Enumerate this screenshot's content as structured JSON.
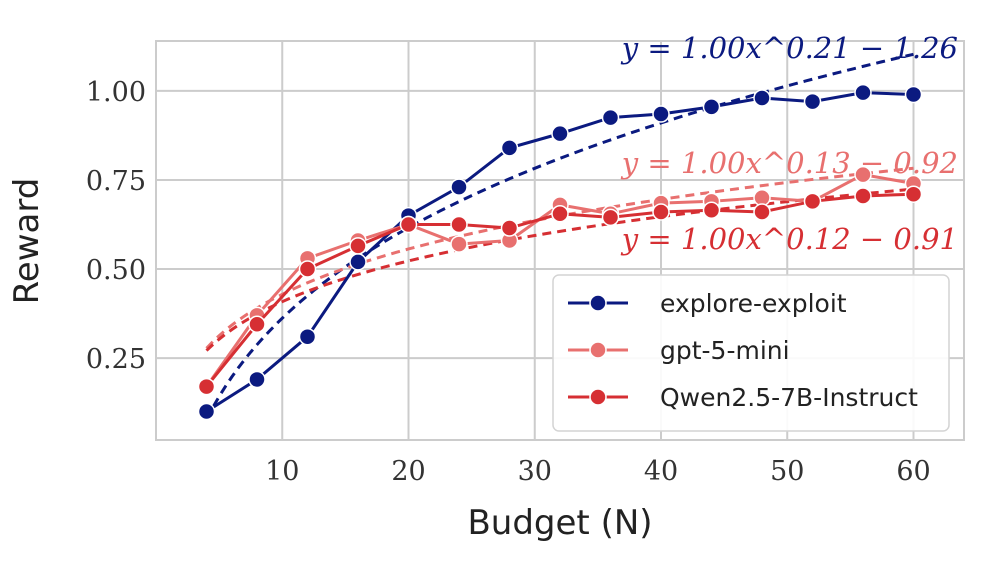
{
  "chart_data": {
    "type": "line",
    "xlabel": "Budget (N)",
    "ylabel": "Reward",
    "xlim": [
      0,
      64
    ],
    "ylim": [
      0.02,
      1.14
    ],
    "xticks": [
      "10",
      "20",
      "30",
      "40",
      "50",
      "60"
    ],
    "yticks": [
      "0.25",
      "0.50",
      "0.75",
      "1.00"
    ],
    "grid": true,
    "legend_position": "bottom-right",
    "series": [
      {
        "name": "explore-exploit",
        "color": "#0b1a80",
        "x": [
          4,
          8,
          12,
          16,
          20,
          24,
          28,
          32,
          36,
          40,
          44,
          48,
          52,
          56,
          60
        ],
        "values": [
          0.1,
          0.19,
          0.31,
          0.52,
          0.65,
          0.73,
          0.84,
          0.88,
          0.925,
          0.935,
          0.955,
          0.98,
          0.97,
          0.995,
          0.99
        ],
        "fit": {
          "a": 1.0,
          "b": 0.21,
          "c": -1.26,
          "label": "y = 1.00x^0.21 − 1.26"
        }
      },
      {
        "name": "gpt-5-mini",
        "color": "#e8706f",
        "x": [
          4,
          8,
          12,
          16,
          20,
          24,
          28,
          32,
          36,
          40,
          44,
          48,
          52,
          56,
          60
        ],
        "values": [
          0.17,
          0.37,
          0.53,
          0.58,
          0.625,
          0.57,
          0.58,
          0.68,
          0.655,
          0.685,
          0.69,
          0.7,
          0.69,
          0.765,
          0.74
        ],
        "fit": {
          "a": 1.0,
          "b": 0.13,
          "c": -0.92,
          "label": "y = 1.00x^0.13 − 0.92"
        }
      },
      {
        "name": "Qwen2.5-7B-Instruct",
        "color": "#d62f33",
        "x": [
          4,
          8,
          12,
          16,
          20,
          24,
          28,
          32,
          36,
          40,
          44,
          48,
          52,
          56,
          60
        ],
        "values": [
          0.17,
          0.345,
          0.5,
          0.565,
          0.625,
          0.625,
          0.615,
          0.655,
          0.645,
          0.66,
          0.665,
          0.66,
          0.69,
          0.705,
          0.71
        ],
        "fit": {
          "a": 1.0,
          "b": 0.12,
          "c": -0.91,
          "label": "y = 1.00x^0.12 − 0.91"
        }
      }
    ]
  }
}
